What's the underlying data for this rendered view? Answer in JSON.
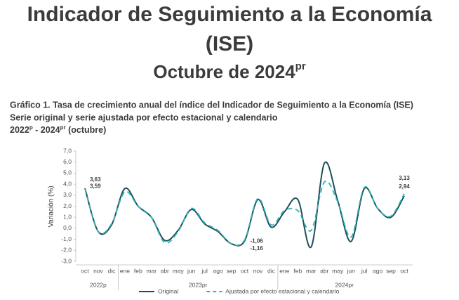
{
  "header": {
    "title_lines": [
      "Indicador de Seguimiento a la Economía",
      "(ISE)"
    ],
    "date": "Octubre de 2024",
    "date_sup": "pr"
  },
  "chart_data": {
    "type": "line",
    "title_lines": [
      "Gráfico 1. Tasa de crecimiento anual del índice del Indicador de Seguimiento a la Economía (ISE)",
      "Serie original y serie ajustada por efecto estacional y calendario"
    ],
    "period": [
      "2022",
      "p",
      " - 2024",
      "pr",
      " (octubre)"
    ],
    "y_label": "Variación (%)",
    "category_groups": [
      {
        "label": "2022p",
        "categories": [
          "oct",
          "nov",
          "dic"
        ]
      },
      {
        "label": "2023pr",
        "categories": [
          "ene",
          "feb",
          "mar",
          "abr",
          "may",
          "jun",
          "jul",
          "ago",
          "sep",
          "oct",
          "nov",
          "dic"
        ]
      },
      {
        "label": "2024pr",
        "categories": [
          "ene",
          "feb",
          "mar",
          "abr",
          "may",
          "jun",
          "jul",
          "ago",
          "sep",
          "oct"
        ]
      }
    ],
    "series": [
      {
        "name": "Original",
        "color": "#1d4f5b",
        "dashed": false,
        "values": [
          3.63,
          -0.3,
          0.3,
          3.6,
          2.0,
          1.0,
          -1.1,
          -0.2,
          1.7,
          0.4,
          -0.3,
          -1.4,
          -1.16,
          2.6,
          0.1,
          1.5,
          2.6,
          -1.7,
          5.9,
          2.5,
          -1.2,
          3.6,
          1.8,
          1.0,
          2.94
        ],
        "value_labels": [
          "3,63",
          null,
          null,
          null,
          null,
          null,
          null,
          null,
          null,
          null,
          null,
          null,
          "-1,16",
          null,
          null,
          null,
          null,
          null,
          null,
          null,
          null,
          null,
          null,
          null,
          "2,94"
        ]
      },
      {
        "name": "Ajustada por efecto estacional y calendario",
        "color": "#2bb3b3",
        "dashed": true,
        "values": [
          3.59,
          -0.3,
          0.4,
          3.3,
          2.0,
          1.0,
          -1.3,
          -0.3,
          1.8,
          0.5,
          -0.2,
          -1.4,
          -1.06,
          2.7,
          0.3,
          1.6,
          1.6,
          -0.2,
          4.2,
          2.4,
          -0.8,
          3.7,
          1.8,
          1.1,
          3.13
        ],
        "value_labels": [
          "3,59",
          null,
          null,
          null,
          null,
          null,
          null,
          null,
          null,
          null,
          null,
          null,
          "-1,06",
          null,
          null,
          null,
          null,
          null,
          null,
          null,
          null,
          null,
          null,
          null,
          "3,13"
        ]
      }
    ],
    "ylim": [
      -3,
      7
    ],
    "yticks": [
      {
        "value": -3,
        "label": "-3,0"
      },
      {
        "value": -2,
        "label": "-2,0"
      },
      {
        "value": -1,
        "label": "-1,0"
      },
      {
        "value": 0,
        "label": "0,0"
      },
      {
        "value": 1,
        "label": "1,0"
      },
      {
        "value": 2,
        "label": "2,0"
      },
      {
        "value": 3,
        "label": "3,0"
      },
      {
        "value": 4,
        "label": "4,0"
      },
      {
        "value": 5,
        "label": "5,0"
      },
      {
        "value": 6,
        "label": "6,0"
      },
      {
        "value": 7,
        "label": "7,0"
      }
    ],
    "legend": "bottom"
  }
}
